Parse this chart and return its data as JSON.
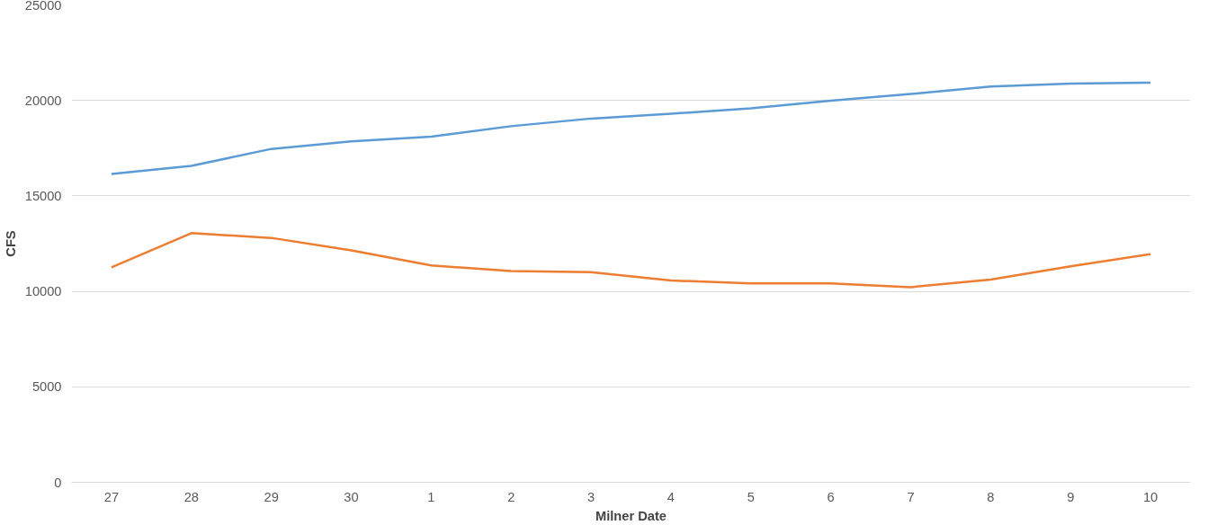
{
  "chart_data": {
    "type": "line",
    "xlabel": "Milner Date",
    "ylabel": "CFS",
    "categories": [
      "27",
      "28",
      "29",
      "30",
      "1",
      "2",
      "3",
      "4",
      "5",
      "6",
      "7",
      "8",
      "9",
      "10"
    ],
    "series": [
      {
        "color": "#5b9bd5",
        "values": [
          16150,
          16570,
          17460,
          17860,
          18100,
          18650,
          19050,
          19300,
          19590,
          19990,
          20340,
          20730,
          20880,
          20930
        ]
      },
      {
        "color": "#ed7d31",
        "values": [
          11260,
          13050,
          12800,
          12150,
          11360,
          11060,
          11010,
          10570,
          10420,
          10420,
          10220,
          10620,
          11310,
          11950
        ]
      }
    ],
    "ylim": [
      0,
      25000
    ],
    "yticks": [
      0,
      5000,
      10000,
      15000,
      20000,
      25000
    ],
    "grid": "y",
    "marker": "none",
    "line_style": "solid"
  }
}
